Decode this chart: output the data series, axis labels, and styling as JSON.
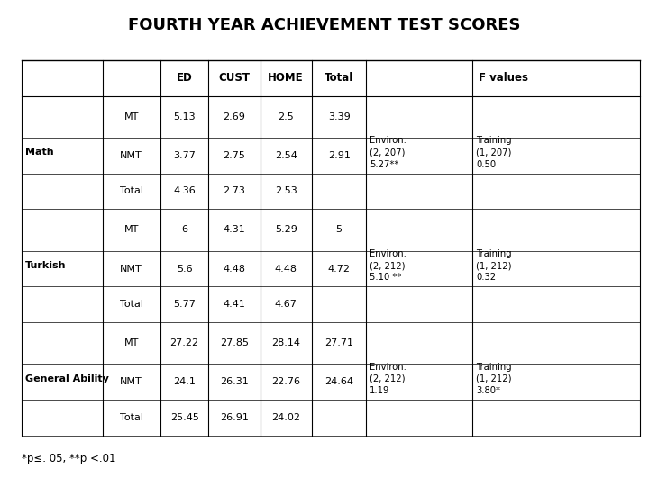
{
  "title": "FOURTH YEAR ACHIEVEMENT TEST SCORES",
  "rows": [
    [
      "",
      "MT",
      "5.13",
      "2.69",
      "2.5",
      "3.39",
      "Environ.\n(2, 207)\n5.27**",
      "Training\n(1, 207)\n0.50"
    ],
    [
      "Math",
      "NMT",
      "3.77",
      "2.75",
      "2.54",
      "2.91",
      "",
      ""
    ],
    [
      "",
      "Total",
      "4.36",
      "2.73",
      "2.53",
      "",
      "",
      ""
    ],
    [
      "",
      "MT",
      "6",
      "4.31",
      "5.29",
      "5",
      "Environ.\n(2, 212)\n5.10 **",
      "Training\n(1, 212)\n0.32"
    ],
    [
      "Turkish",
      "NMT",
      "5.6",
      "4.48",
      "4.48",
      "4.72",
      "",
      ""
    ],
    [
      "",
      "Total",
      "5.77",
      "4.41",
      "4.67",
      "",
      "",
      ""
    ],
    [
      "",
      "MT",
      "27.22",
      "27.85",
      "28.14",
      "27.71",
      "Environ.\n(2, 212)\n1.19",
      "Training\n(1, 212)\n3.80*"
    ],
    [
      "General Ability",
      "NMT",
      "24.1",
      "26.31",
      "22.76",
      "24.64",
      "",
      ""
    ],
    [
      "",
      "Total",
      "25.45",
      "26.91",
      "24.02",
      "",
      "",
      ""
    ]
  ],
  "footnote": "*p≤. 05, **p <.01",
  "background": "#ffffff",
  "text_color": "#000000"
}
